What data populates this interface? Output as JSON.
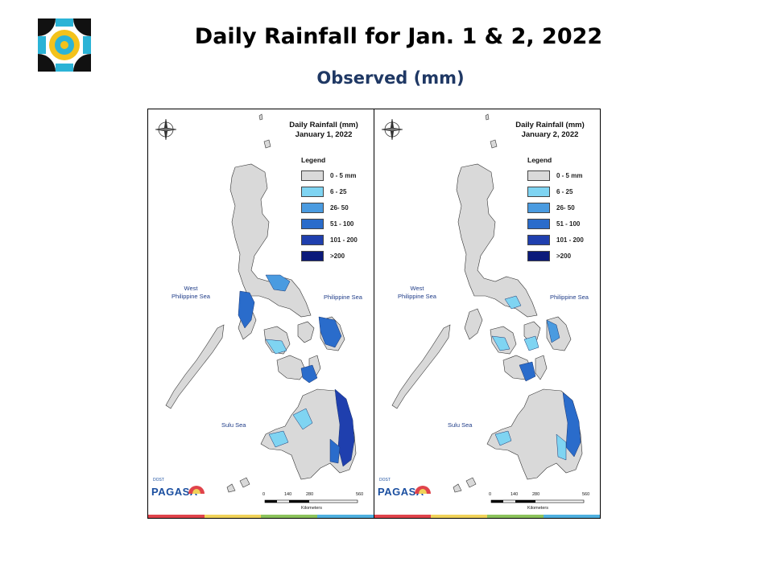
{
  "header": {
    "title": "Daily Rainfall for Jan. 1 & 2, 2022",
    "subtitle": "Observed (mm)"
  },
  "legend": {
    "title": "Legend",
    "items": [
      {
        "label": "0 - 5 mm",
        "color": "#d9d9d9"
      },
      {
        "label": "6 - 25",
        "color": "#7fd4f2"
      },
      {
        "label": "26- 50",
        "color": "#4a9be0"
      },
      {
        "label": "51 - 100",
        "color": "#2a6ccb"
      },
      {
        "label": "101 - 200",
        "color": "#1f3fae"
      },
      {
        "label": ">200",
        "color": "#0b1a7a"
      }
    ]
  },
  "maps": [
    {
      "title_line1": "Daily Rainfall (mm)",
      "title_line2": "January 1, 2022",
      "seas": {
        "west": "West\nPhilippine Sea",
        "east": "Philippine Sea",
        "sulu": "Sulu Sea"
      },
      "scale": {
        "ticks": [
          "0",
          "140",
          "280",
          "560"
        ],
        "unit": "Kilometers"
      },
      "branding": {
        "small": "DOST",
        "name": "PAGASA"
      }
    },
    {
      "title_line1": "Daily Rainfall (mm)",
      "title_line2": "January 2, 2022",
      "seas": {
        "west": "West\nPhilippine Sea",
        "east": "Philippine Sea",
        "sulu": "Sulu Sea"
      },
      "scale": {
        "ticks": [
          "0",
          "140",
          "280",
          "560"
        ],
        "unit": "Kilometers"
      },
      "branding": {
        "small": "DOST",
        "name": "PAGASA"
      }
    }
  ],
  "compass": {
    "n": "N",
    "s": "S",
    "e": "E",
    "w": "W"
  },
  "footbar_colors": [
    "#e0434b",
    "#f0d25a",
    "#8cc35c",
    "#4fb0e0"
  ]
}
